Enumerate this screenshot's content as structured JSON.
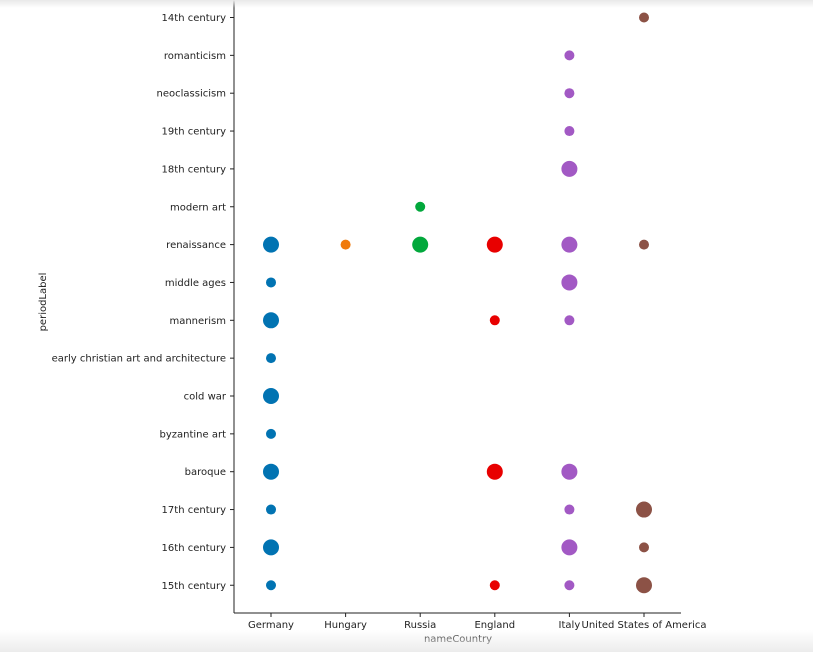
{
  "chart_data": {
    "type": "scatter",
    "xlabel": "nameCountry",
    "ylabel": "periodLabel",
    "x_categories": [
      "Germany",
      "Hungary",
      "Russia",
      "England",
      "Italy",
      "United States of America"
    ],
    "y_categories": [
      "14th century",
      "romanticism",
      "neoclassicism",
      "19th century",
      "18th century",
      "modern art",
      "renaissance",
      "middle ages",
      "mannerism",
      "early christian art and architecture",
      "cold war",
      "byzantine art",
      "baroque",
      "17th century",
      "16th century",
      "15th century"
    ],
    "colors": {
      "Germany": "#0173b2",
      "Hungary": "#f07a0c",
      "Russia": "#02a83c",
      "England": "#e80000",
      "Italy": "#a259c4",
      "United States of America": "#8c5246"
    },
    "grid": false,
    "points": [
      {
        "x": "Germany",
        "y": "renaissance",
        "size": 2
      },
      {
        "x": "Germany",
        "y": "middle ages",
        "size": 1
      },
      {
        "x": "Germany",
        "y": "mannerism",
        "size": 2
      },
      {
        "x": "Germany",
        "y": "early christian art and architecture",
        "size": 1
      },
      {
        "x": "Germany",
        "y": "cold war",
        "size": 2
      },
      {
        "x": "Germany",
        "y": "byzantine art",
        "size": 1
      },
      {
        "x": "Germany",
        "y": "baroque",
        "size": 2
      },
      {
        "x": "Germany",
        "y": "17th century",
        "size": 1
      },
      {
        "x": "Germany",
        "y": "16th century",
        "size": 2
      },
      {
        "x": "Germany",
        "y": "15th century",
        "size": 1
      },
      {
        "x": "Hungary",
        "y": "renaissance",
        "size": 1
      },
      {
        "x": "Russia",
        "y": "modern art",
        "size": 1
      },
      {
        "x": "Russia",
        "y": "renaissance",
        "size": 2
      },
      {
        "x": "England",
        "y": "renaissance",
        "size": 2
      },
      {
        "x": "England",
        "y": "mannerism",
        "size": 1
      },
      {
        "x": "England",
        "y": "baroque",
        "size": 2
      },
      {
        "x": "England",
        "y": "15th century",
        "size": 1
      },
      {
        "x": "Italy",
        "y": "romanticism",
        "size": 1
      },
      {
        "x": "Italy",
        "y": "neoclassicism",
        "size": 1
      },
      {
        "x": "Italy",
        "y": "19th century",
        "size": 1
      },
      {
        "x": "Italy",
        "y": "18th century",
        "size": 2
      },
      {
        "x": "Italy",
        "y": "renaissance",
        "size": 2
      },
      {
        "x": "Italy",
        "y": "middle ages",
        "size": 2
      },
      {
        "x": "Italy",
        "y": "mannerism",
        "size": 1
      },
      {
        "x": "Italy",
        "y": "baroque",
        "size": 2
      },
      {
        "x": "Italy",
        "y": "17th century",
        "size": 1
      },
      {
        "x": "Italy",
        "y": "16th century",
        "size": 2
      },
      {
        "x": "Italy",
        "y": "15th century",
        "size": 1
      },
      {
        "x": "United States of America",
        "y": "14th century",
        "size": 1
      },
      {
        "x": "United States of America",
        "y": "renaissance",
        "size": 1
      },
      {
        "x": "United States of America",
        "y": "17th century",
        "size": 2
      },
      {
        "x": "United States of America",
        "y": "16th century",
        "size": 1
      },
      {
        "x": "United States of America",
        "y": "15th century",
        "size": 2
      }
    ]
  }
}
